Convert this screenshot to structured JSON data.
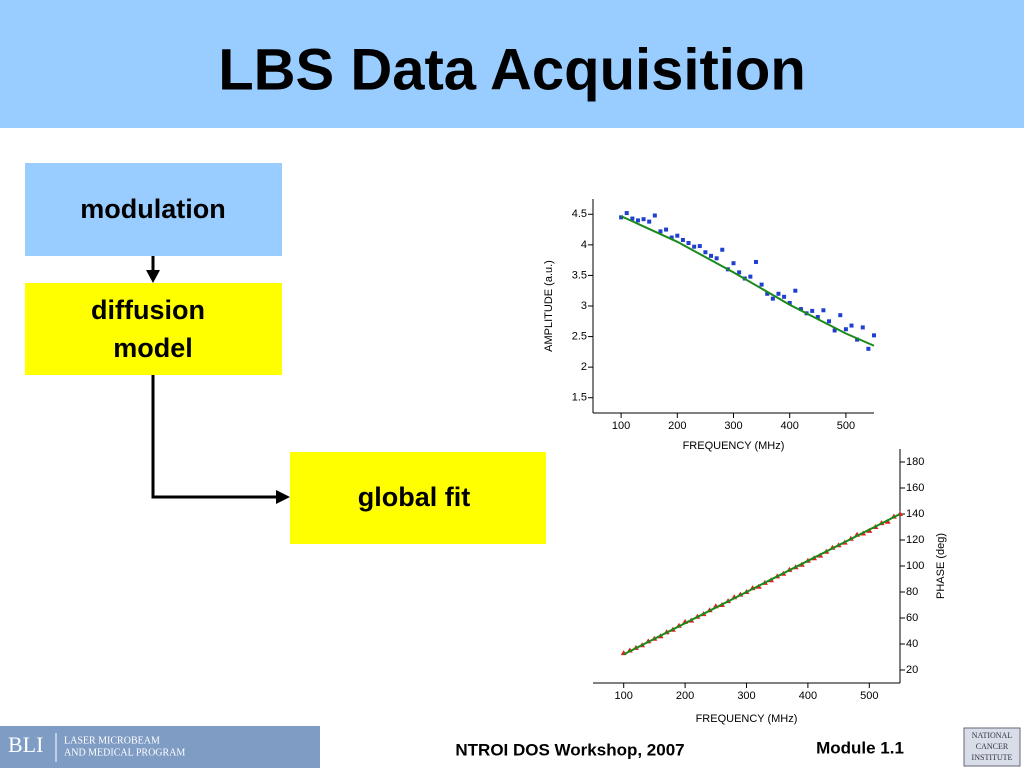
{
  "slide": {
    "title": "LBS Data Acquisition",
    "flow": [
      {
        "label": [
          "modulation"
        ]
      },
      {
        "label": [
          "diffusion",
          "model"
        ]
      },
      {
        "label": [
          "global fit"
        ]
      }
    ],
    "footer": {
      "logo": "BLI",
      "logo_line1": "Laser Microbeam",
      "logo_line2": "and Medical Program",
      "workshop": "NTROI DOS Workshop, 2007",
      "module": "Module 1.1",
      "nci": [
        "NATIONAL",
        "CANCER",
        "INSTITUTE"
      ]
    }
  },
  "chart_data": [
    {
      "type": "scatter",
      "xlabel": "FREQUENCY (MHz)",
      "ylabel": "AMPLITUDE (a.u.)",
      "xlim": [
        50,
        550
      ],
      "xticks": [
        100,
        200,
        300,
        400,
        500
      ],
      "ylim": [
        1.25,
        4.75
      ],
      "yticks": [
        1.5,
        2.0,
        2.5,
        3.0,
        3.5,
        4.0,
        4.5
      ],
      "y_axis_side": "left",
      "series": [
        {
          "style": "square",
          "color": "#1f3fd0",
          "x": [
            100,
            110,
            120,
            130,
            140,
            150,
            160,
            170,
            180,
            190,
            200,
            210,
            220,
            230,
            240,
            250,
            260,
            270,
            280,
            290,
            300,
            310,
            320,
            330,
            340,
            350,
            360,
            370,
            380,
            390,
            400,
            410,
            420,
            430,
            440,
            450,
            460,
            470,
            480,
            490,
            500,
            510,
            520,
            530,
            540,
            550
          ],
          "values": [
            4.45,
            4.52,
            4.43,
            4.4,
            4.42,
            4.38,
            4.48,
            4.22,
            4.25,
            4.12,
            4.15,
            4.08,
            4.03,
            3.97,
            3.98,
            3.88,
            3.82,
            3.78,
            3.92,
            3.6,
            3.7,
            3.55,
            3.45,
            3.48,
            3.72,
            3.35,
            3.2,
            3.12,
            3.2,
            3.15,
            3.05,
            3.25,
            2.95,
            2.88,
            2.92,
            2.82,
            2.93,
            2.75,
            2.6,
            2.85,
            2.62,
            2.68,
            2.45,
            2.65,
            2.3,
            2.52
          ]
        },
        {
          "style": "line",
          "color": "#1a8a1a",
          "x": [
            100,
            200,
            300,
            400,
            500,
            550
          ],
          "values": [
            4.47,
            4.05,
            3.55,
            3.02,
            2.55,
            2.35
          ]
        }
      ]
    },
    {
      "type": "scatter",
      "xlabel": "FREQUENCY (MHz)",
      "ylabel": "PHASE (deg)",
      "xlim": [
        50,
        550
      ],
      "xticks": [
        100,
        200,
        300,
        400,
        500
      ],
      "ylim": [
        10,
        190
      ],
      "yticks": [
        20,
        40,
        60,
        80,
        100,
        120,
        140,
        160,
        180
      ],
      "y_axis_side": "right",
      "series": [
        {
          "style": "triangle",
          "color": "#e02020",
          "x": [
            100,
            110,
            120,
            130,
            140,
            150,
            160,
            170,
            180,
            190,
            200,
            210,
            220,
            230,
            240,
            250,
            260,
            270,
            280,
            290,
            300,
            310,
            320,
            330,
            340,
            350,
            360,
            370,
            380,
            390,
            400,
            410,
            420,
            430,
            440,
            450,
            460,
            470,
            480,
            490,
            500,
            510,
            520,
            530,
            540,
            550
          ],
          "values": [
            33,
            35,
            37,
            39,
            42,
            44,
            46,
            49,
            51,
            54,
            57,
            58,
            61,
            63,
            66,
            69,
            70,
            73,
            76,
            78,
            80,
            83,
            84,
            87,
            89,
            92,
            94,
            97,
            99,
            101,
            104,
            106,
            108,
            111,
            114,
            116,
            118,
            121,
            124,
            125,
            127,
            130,
            133,
            134,
            138,
            140
          ]
        },
        {
          "style": "line",
          "color": "#1a8a1a",
          "x": [
            100,
            200,
            300,
            400,
            500,
            550
          ],
          "values": [
            32,
            56,
            80,
            104,
            128,
            140
          ]
        }
      ]
    }
  ]
}
